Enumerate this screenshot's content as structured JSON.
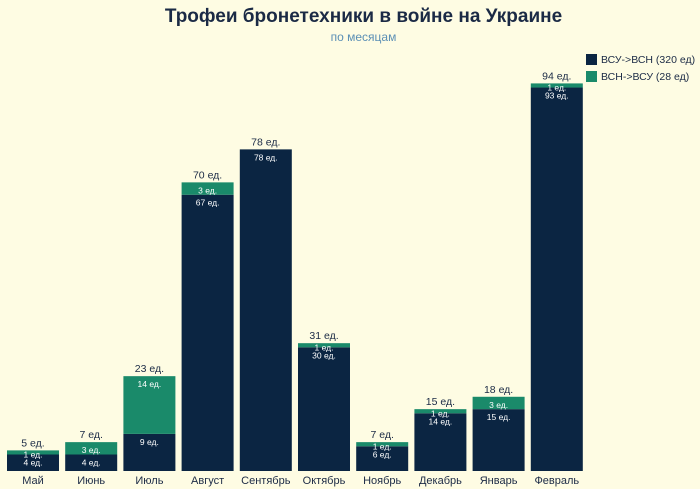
{
  "chart_data": {
    "type": "bar",
    "stacked": true,
    "title": "Трофеи бронетехники в войне на Украине",
    "subtitle": "по месяцам",
    "categories": [
      "Май",
      "Июнь",
      "Июль",
      "Август",
      "Сентябрь",
      "Октябрь",
      "Ноябрь",
      "Декабрь",
      "Январь",
      "Февраль"
    ],
    "series": [
      {
        "name": "ВСУ->ВСН (320 ед)",
        "color": "#0b2542",
        "values": [
          4,
          4,
          9,
          67,
          78,
          30,
          6,
          14,
          15,
          93
        ],
        "labels": [
          "4 ед.",
          "4 ед.",
          "9 ед.",
          "67 ед.",
          "78 ед.",
          "30 ед.",
          "6 ед.",
          "14 ед.",
          "15 ед.",
          "93 ед."
        ]
      },
      {
        "name": "ВСН->ВСУ (28 ед)",
        "color": "#1a8a6a",
        "values": [
          1,
          3,
          14,
          3,
          0,
          1,
          1,
          1,
          3,
          1
        ],
        "labels": [
          "1 ед.",
          "3 ед.",
          "14 ед.",
          "3 ед.",
          "",
          "1 ед.",
          "1 ед.",
          "1 ед.",
          "3 ед.",
          "1 ед."
        ]
      }
    ],
    "totals": [
      "5 ед.",
      "7 ед.",
      "23 ед.",
      "70 ед.",
      "78 ед.",
      "31 ед.",
      "7 ед.",
      "15 ед.",
      "18 ед.",
      "94 ед."
    ],
    "ylim": [
      0,
      100
    ],
    "grid": false,
    "legend_position": "top-right"
  }
}
